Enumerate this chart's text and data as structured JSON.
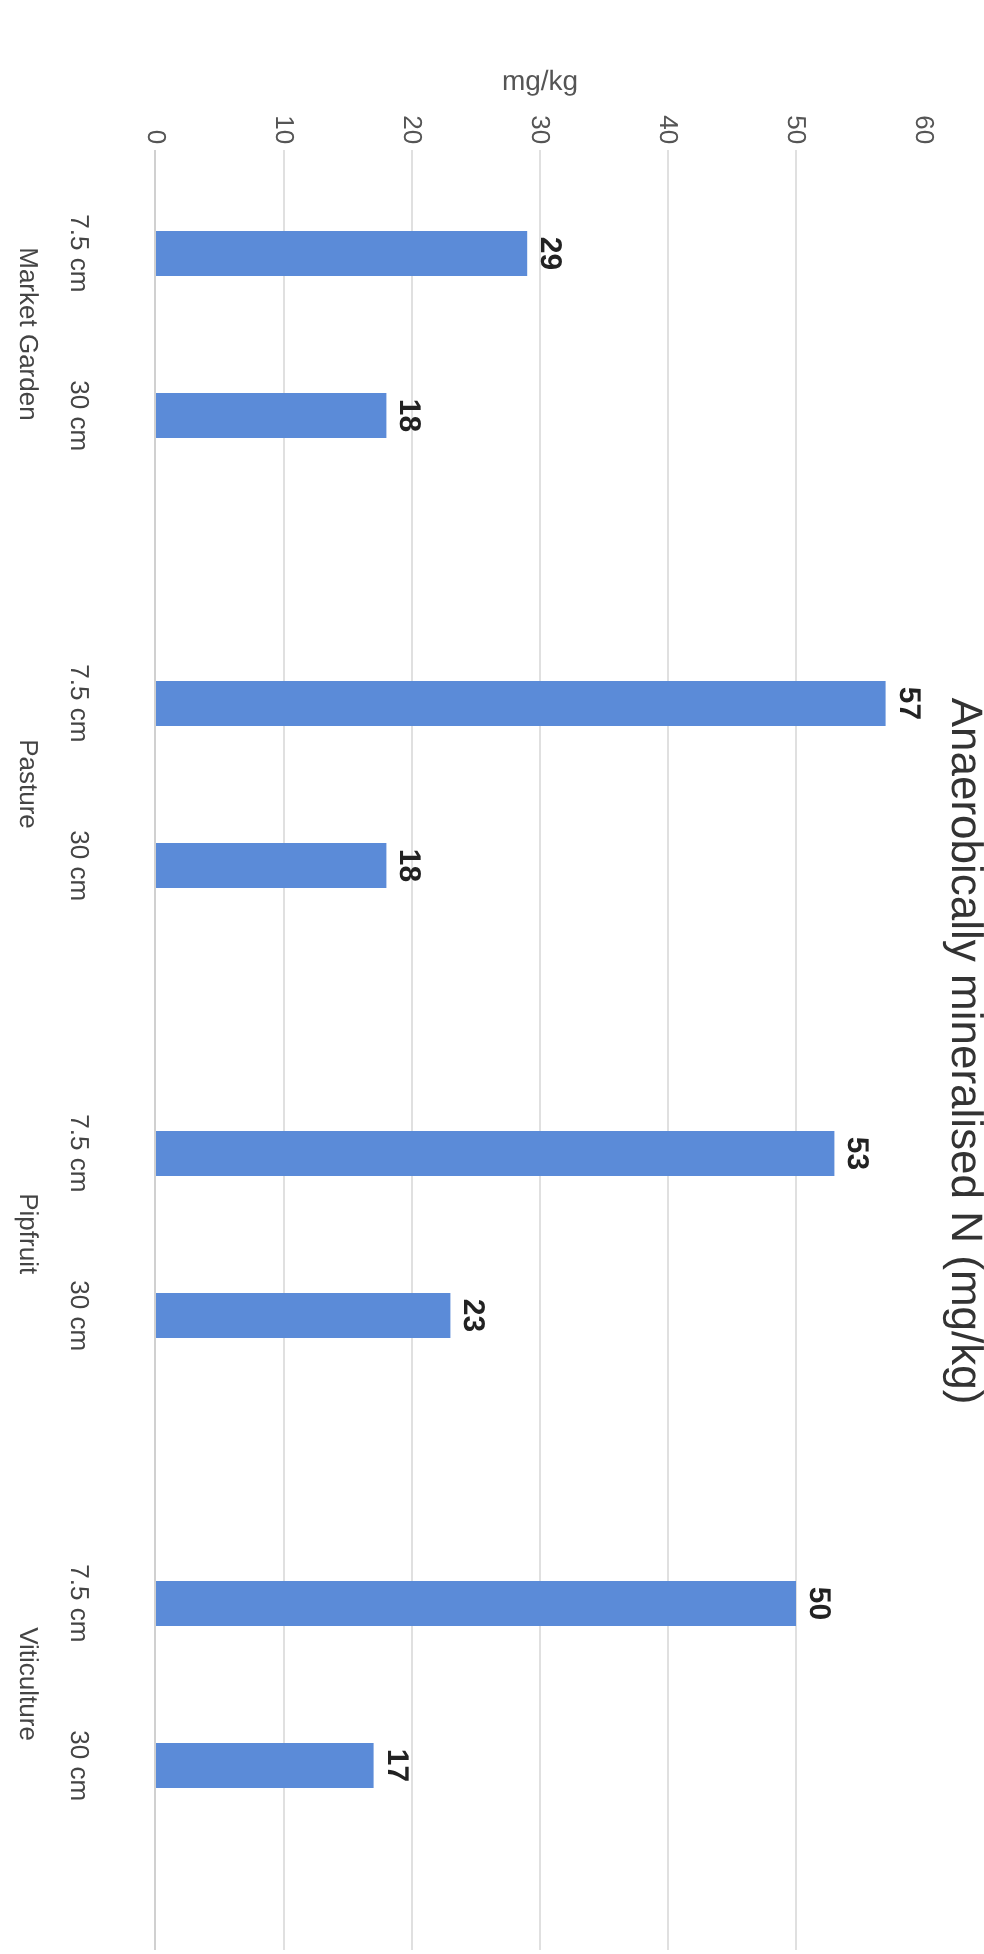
{
  "chart_data": {
    "type": "bar",
    "orientation": "horizontal",
    "title": "Anaerobically mineralised N (mg/kg)",
    "xlabel": "mg/kg",
    "categories": [
      "Market Garden",
      "Pasture",
      "Pipfruit",
      "Viticulture"
    ],
    "series": [
      {
        "name": "7.5 cm",
        "color": "#5b8bd8",
        "values": [
          29,
          57,
          53,
          50
        ]
      },
      {
        "name": "30 cm",
        "color": "#5b8bd8",
        "values": [
          18,
          18,
          23,
          17
        ]
      }
    ],
    "xlim": [
      0,
      60
    ],
    "xticks": [
      0,
      10,
      20,
      30,
      40,
      50,
      60
    ],
    "grid": "x",
    "legend": false,
    "data_labels": true
  }
}
